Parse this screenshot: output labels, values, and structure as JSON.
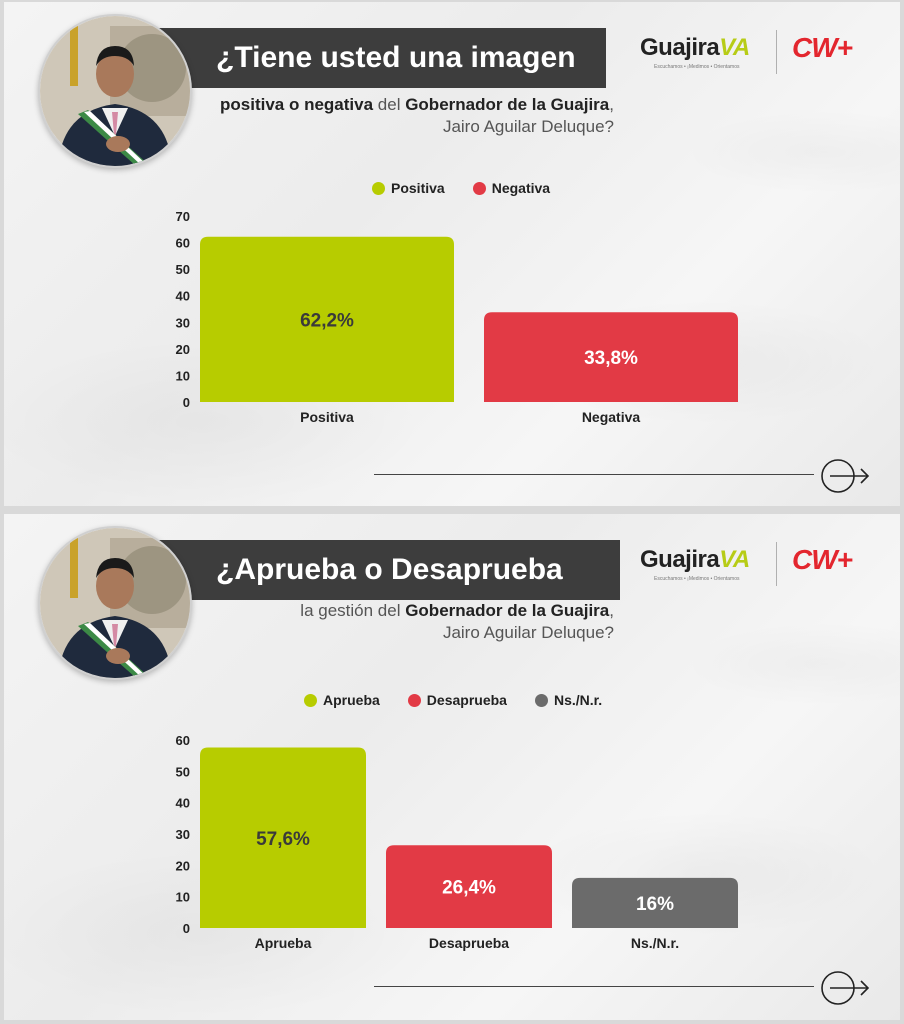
{
  "panels": [
    {
      "title": "¿Tiene usted una imagen",
      "subtitle": {
        "part1": "positiva o negativa",
        "part2": " del ",
        "part3": "Gobernador de la Guajira",
        "part4": ",",
        "line2": "Jairo Aguilar Deluque?"
      },
      "brand": {
        "name_a": "Guajira",
        "name_b": "VA",
        "tagline": "Escuchamos • ¡Medimos • Orientamos",
        "partner": "CW+"
      },
      "legend": [
        {
          "label": "Positiva",
          "color": "#b7cc00"
        },
        {
          "label": "Negativa",
          "color": "#e23a45"
        }
      ]
    },
    {
      "title": "¿Aprueba o Desaprueba",
      "subtitle": {
        "part1": "la gestión del ",
        "part2": "",
        "part3": "Gobernador de la Guajira",
        "part4": ",",
        "line2": "Jairo Aguilar Deluque?"
      },
      "brand": {
        "name_a": "Guajira",
        "name_b": "VA",
        "tagline": "Escuchamos • ¡Medimos • Orientamos",
        "partner": "CW+"
      },
      "legend": [
        {
          "label": "Aprueba",
          "color": "#b7cc00"
        },
        {
          "label": "Desaprueba",
          "color": "#e23a45"
        },
        {
          "label": "Ns./N.r.",
          "color": "#6b6b6b"
        }
      ]
    }
  ],
  "chart_data": [
    {
      "type": "bar",
      "title": "¿Tiene usted una imagen positiva o negativa del Gobernador de la Guajira, Jairo Aguilar Deluque?",
      "categories": [
        "Positiva",
        "Negativa"
      ],
      "values": [
        62.2,
        33.8
      ],
      "data_labels": [
        "62,2%",
        "33,8%"
      ],
      "colors": [
        "#b7cc00",
        "#e23a45"
      ],
      "label_colors": [
        "#3a3a3a",
        "#ffffff"
      ],
      "ylim": [
        0,
        70
      ],
      "yticks": [
        0,
        10,
        20,
        30,
        40,
        50,
        60,
        70
      ],
      "grid": false,
      "legend": "top-center"
    },
    {
      "type": "bar",
      "title": "¿Aprueba o Desaprueba la gestión del Gobernador de la Guajira, Jairo Aguilar Deluque?",
      "categories": [
        "Aprueba",
        "Desaprueba",
        "Ns./N.r."
      ],
      "values": [
        57.6,
        26.4,
        16
      ],
      "data_labels": [
        "57,6%",
        "26,4%",
        "16%"
      ],
      "colors": [
        "#b7cc00",
        "#e23a45",
        "#6b6b6b"
      ],
      "label_colors": [
        "#3a3a3a",
        "#ffffff",
        "#ffffff"
      ],
      "ylim": [
        0,
        60
      ],
      "yticks": [
        0,
        10,
        20,
        30,
        40,
        50,
        60
      ],
      "grid": false,
      "legend": "top-center"
    }
  ]
}
